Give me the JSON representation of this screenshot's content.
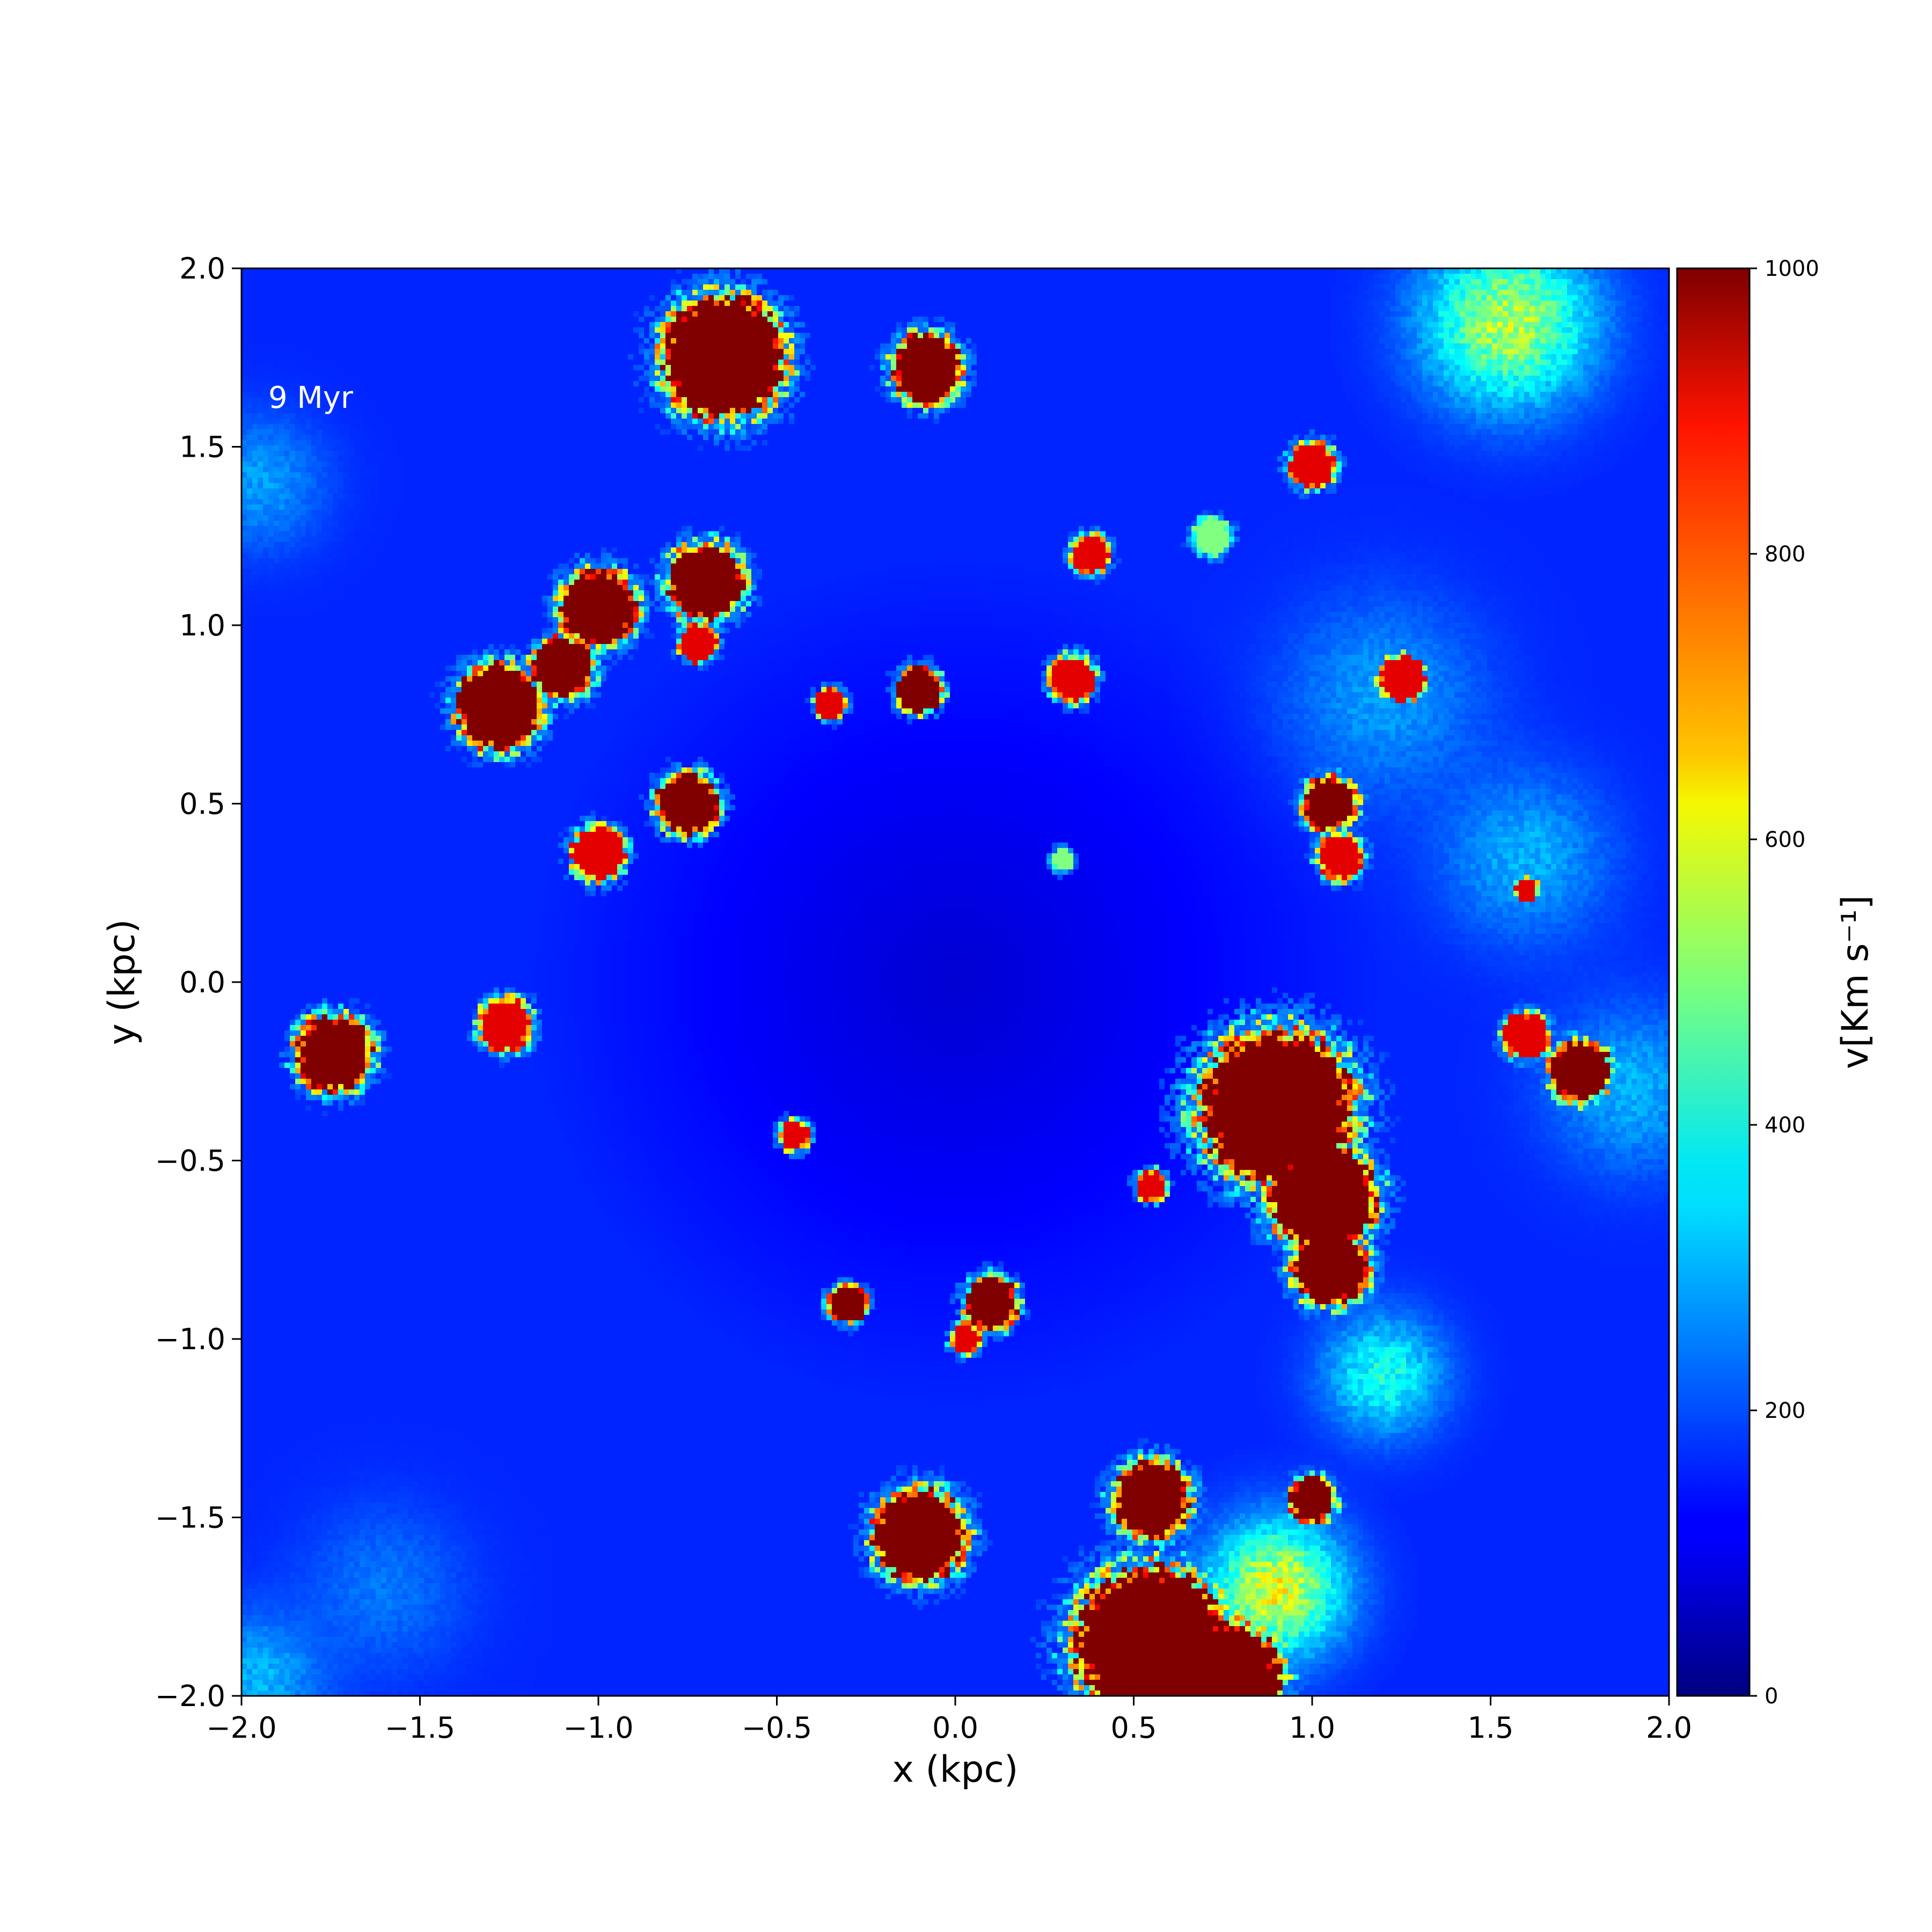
{
  "chart_data": {
    "type": "heatmap",
    "annotation": "9 Myr",
    "xlabel": "x (kpc)",
    "ylabel": "y (kpc)",
    "xlim": [
      -2.0,
      2.0
    ],
    "ylim": [
      -2.0,
      2.0
    ],
    "x_ticks": [
      -2.0,
      -1.5,
      -1.0,
      -0.5,
      0.0,
      0.5,
      1.0,
      1.5,
      2.0
    ],
    "y_ticks": [
      -2.0,
      -1.5,
      -1.0,
      -0.5,
      0.0,
      0.5,
      1.0,
      1.5,
      2.0
    ],
    "x_tick_labels": [
      "−2.0",
      "−1.5",
      "−1.0",
      "−0.5",
      "0.0",
      "0.5",
      "1.0",
      "1.5",
      "2.0"
    ],
    "y_tick_labels": [
      "−2.0",
      "−1.5",
      "−1.0",
      "−0.5",
      "0.0",
      "0.5",
      "1.0",
      "1.5",
      "2.0"
    ],
    "colorbar": {
      "label": "v[Km s⁻¹]",
      "colormap": "jet",
      "vmin": 0,
      "vmax": 1000,
      "ticks": [
        0,
        200,
        400,
        600,
        800,
        1000
      ],
      "tick_labels": [
        "0",
        "200",
        "400",
        "600",
        "800",
        "1000"
      ]
    },
    "field": {
      "background_value": 160,
      "center_value": 80,
      "clumps": [
        {
          "x": -0.65,
          "y": 1.75,
          "r": 0.16,
          "value": 1000
        },
        {
          "x": -0.08,
          "y": 1.72,
          "r": 0.09,
          "value": 1000
        },
        {
          "x": 1.0,
          "y": 1.45,
          "r": 0.06,
          "value": 900
        },
        {
          "x": 0.38,
          "y": 1.2,
          "r": 0.05,
          "value": 900
        },
        {
          "x": 0.72,
          "y": 1.25,
          "r": 0.05,
          "value": 500
        },
        {
          "x": -0.7,
          "y": 1.12,
          "r": 0.1,
          "value": 1000
        },
        {
          "x": -1.0,
          "y": 1.05,
          "r": 0.1,
          "value": 1000
        },
        {
          "x": -1.1,
          "y": 0.88,
          "r": 0.08,
          "value": 1000
        },
        {
          "x": -1.28,
          "y": 0.77,
          "r": 0.11,
          "value": 1000
        },
        {
          "x": -0.72,
          "y": 0.95,
          "r": 0.05,
          "value": 900
        },
        {
          "x": -0.35,
          "y": 0.78,
          "r": 0.04,
          "value": 900
        },
        {
          "x": -0.1,
          "y": 0.82,
          "r": 0.06,
          "value": 1000
        },
        {
          "x": 0.33,
          "y": 0.85,
          "r": 0.06,
          "value": 900
        },
        {
          "x": 1.25,
          "y": 0.85,
          "r": 0.06,
          "value": 900
        },
        {
          "x": -0.75,
          "y": 0.5,
          "r": 0.08,
          "value": 1000
        },
        {
          "x": -1.0,
          "y": 0.36,
          "r": 0.07,
          "value": 900
        },
        {
          "x": 0.3,
          "y": 0.34,
          "r": 0.03,
          "value": 500
        },
        {
          "x": 1.05,
          "y": 0.5,
          "r": 0.07,
          "value": 1000
        },
        {
          "x": 1.08,
          "y": 0.35,
          "r": 0.06,
          "value": 900
        },
        {
          "x": 1.6,
          "y": 0.26,
          "r": 0.03,
          "value": 900
        },
        {
          "x": -1.74,
          "y": -0.2,
          "r": 0.1,
          "value": 1000
        },
        {
          "x": -1.26,
          "y": -0.12,
          "r": 0.07,
          "value": 900
        },
        {
          "x": 0.9,
          "y": -0.35,
          "r": 0.2,
          "value": 1000
        },
        {
          "x": 1.03,
          "y": -0.6,
          "r": 0.14,
          "value": 1000
        },
        {
          "x": 1.05,
          "y": -0.8,
          "r": 0.1,
          "value": 1000
        },
        {
          "x": 1.6,
          "y": -0.15,
          "r": 0.06,
          "value": 900
        },
        {
          "x": 1.75,
          "y": -0.25,
          "r": 0.08,
          "value": 1000
        },
        {
          "x": -0.45,
          "y": -0.43,
          "r": 0.04,
          "value": 900
        },
        {
          "x": 0.55,
          "y": -0.57,
          "r": 0.04,
          "value": 900
        },
        {
          "x": 0.1,
          "y": -0.9,
          "r": 0.07,
          "value": 1000
        },
        {
          "x": -0.3,
          "y": -0.9,
          "r": 0.05,
          "value": 1000
        },
        {
          "x": 0.03,
          "y": -1.0,
          "r": 0.04,
          "value": 900
        },
        {
          "x": -0.1,
          "y": -1.55,
          "r": 0.12,
          "value": 1000
        },
        {
          "x": 0.55,
          "y": -1.45,
          "r": 0.1,
          "value": 1000
        },
        {
          "x": 1.0,
          "y": -1.45,
          "r": 0.06,
          "value": 1000
        },
        {
          "x": 0.55,
          "y": -1.85,
          "r": 0.2,
          "value": 1000
        },
        {
          "x": 0.75,
          "y": -1.95,
          "r": 0.15,
          "value": 1000
        }
      ],
      "warm_regions": [
        {
          "x": 1.55,
          "y": 1.85,
          "r": 0.25,
          "value": 550
        },
        {
          "x": 0.9,
          "y": -1.7,
          "r": 0.2,
          "value": 600
        },
        {
          "x": 1.2,
          "y": -1.1,
          "r": 0.18,
          "value": 400
        },
        {
          "x": 1.2,
          "y": 0.8,
          "r": 0.3,
          "value": 280
        },
        {
          "x": 1.6,
          "y": 0.35,
          "r": 0.25,
          "value": 300
        },
        {
          "x": 1.9,
          "y": -0.3,
          "r": 0.25,
          "value": 300
        },
        {
          "x": -1.95,
          "y": 1.4,
          "r": 0.2,
          "value": 280
        },
        {
          "x": -1.95,
          "y": -1.95,
          "r": 0.2,
          "value": 300
        },
        {
          "x": -1.6,
          "y": -1.7,
          "r": 0.25,
          "value": 240
        }
      ]
    }
  }
}
